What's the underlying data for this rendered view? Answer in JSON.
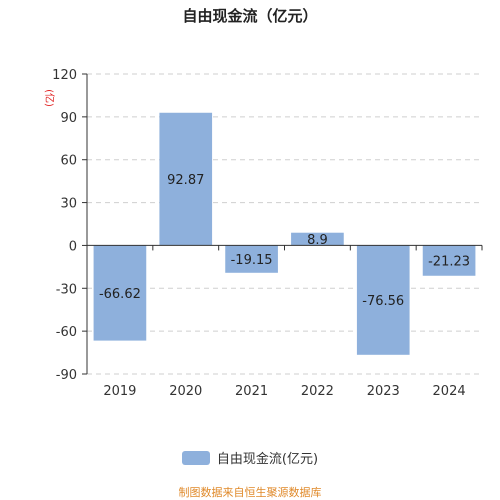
{
  "chart_data": {
    "type": "bar",
    "title": "自由现金流（亿元）",
    "ylabel": "(亿)",
    "categories": [
      "2019",
      "2020",
      "2021",
      "2022",
      "2023",
      "2024"
    ],
    "series": [
      {
        "name": "自由现金流(亿元)",
        "values": [
          -66.62,
          92.87,
          -19.15,
          8.9,
          -76.56,
          -21.23
        ]
      }
    ],
    "value_labels": [
      "-66.62",
      "92.87",
      "-19.15",
      "8.9",
      "-76.56",
      "-21.23"
    ],
    "ylim": [
      -90,
      120
    ],
    "yticks": [
      -90,
      -60,
      -30,
      0,
      30,
      60,
      90,
      120
    ],
    "grid": true,
    "legend_position": "bottom",
    "colors": {
      "bar": "#8eb0dc",
      "axis": "#333333",
      "grid": "#cfcfcf",
      "ylabel": "#e02020"
    }
  },
  "footer": {
    "source": "制图数据来自恒生聚源数据库"
  }
}
